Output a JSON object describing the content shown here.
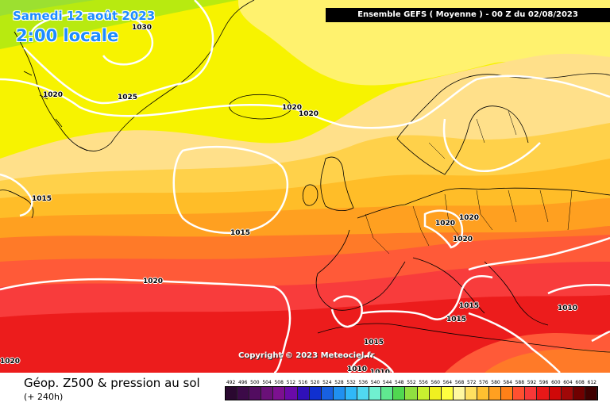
{
  "header": {
    "date": "Samedi 12 août 2023",
    "local_time": "2:00 locale",
    "run_info": "Ensemble GEFS  ( Moyenne )  - 00 Z du 02/08/2023"
  },
  "copyright": "Copyright © 2023 Meteociel.fr",
  "isobar_labels": [
    "1030",
    "1025",
    "1020",
    "1020",
    "1020",
    "1015",
    "1015",
    "1020",
    "1020",
    "1020",
    "1020",
    "1015",
    "1015",
    "1015",
    "1010",
    "1010",
    "1010",
    "1020"
  ],
  "footer": {
    "title": "Géop. Z500 & pression au sol",
    "subtitle": "(+ 240h)"
  },
  "legend": {
    "values": [
      "492",
      "496",
      "500",
      "504",
      "508",
      "512",
      "516",
      "520",
      "524",
      "528",
      "532",
      "536",
      "540",
      "544",
      "548",
      "552",
      "556",
      "560",
      "564",
      "568",
      "572",
      "576",
      "580",
      "584",
      "588",
      "592",
      "596",
      "600",
      "604",
      "608",
      "612"
    ],
    "colors": [
      "#2a0830",
      "#3c0a48",
      "#520c60",
      "#6a1078",
      "#7c1090",
      "#6a0aa8",
      "#3010b8",
      "#1030d0",
      "#1860e0",
      "#2090f0",
      "#30b8f8",
      "#50d8f0",
      "#70f0d0",
      "#60e890",
      "#50d850",
      "#90e040",
      "#c8f030",
      "#f0f020",
      "#ffff40",
      "#fff8a0",
      "#ffe060",
      "#ffc030",
      "#ffa020",
      "#ff8018",
      "#ff5030",
      "#f83838",
      "#e81818",
      "#d00808",
      "#a00808",
      "#700000",
      "#400000"
    ]
  },
  "colors": {
    "accent_text": "#1e8cff",
    "isobar": "#ffffff",
    "coastline": "#000000"
  }
}
